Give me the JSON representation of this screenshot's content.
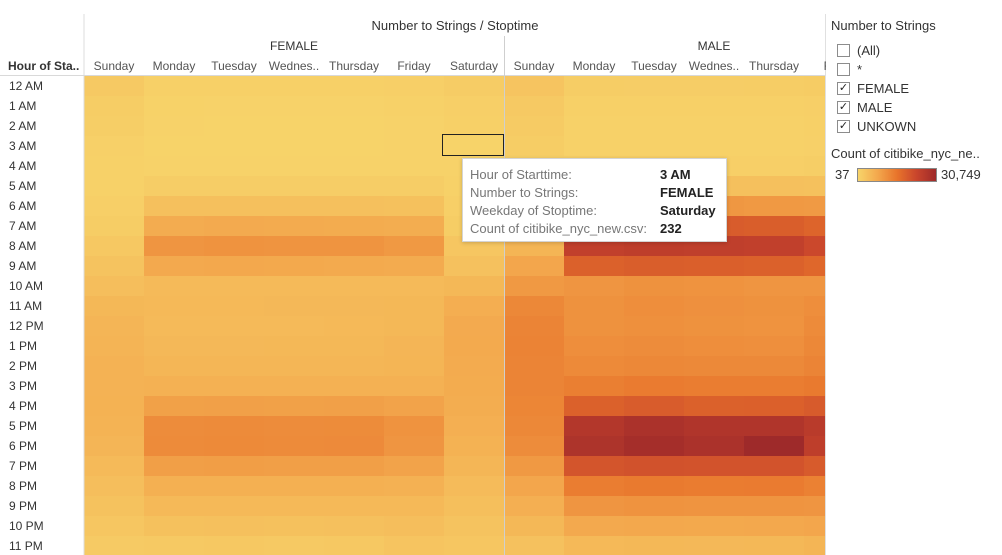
{
  "chart_data": {
    "type": "heatmap",
    "title": "Number to Strings / Stoptime",
    "row_header": "Hour of Sta..",
    "rows": [
      "12 AM",
      "1 AM",
      "2 AM",
      "3 AM",
      "4 AM",
      "5 AM",
      "6 AM",
      "7 AM",
      "8 AM",
      "9 AM",
      "10 AM",
      "11 AM",
      "12 PM",
      "1 PM",
      "2 PM",
      "3 PM",
      "4 PM",
      "5 PM",
      "6 PM",
      "7 PM",
      "8 PM",
      "9 PM",
      "10 PM",
      "11 PM"
    ],
    "groups": [
      {
        "name": "FEMALE",
        "columns": [
          "Sunday",
          "Monday",
          "Tuesday",
          "Wednes..",
          "Thursday",
          "Friday",
          "Saturday"
        ]
      },
      {
        "name": "MALE",
        "columns": [
          "Sunday",
          "Monday",
          "Tuesday",
          "Wednes..",
          "Thursday",
          "Frid"
        ]
      }
    ],
    "color_min": 37,
    "color_max": 30749,
    "values": [
      [
        1900,
        800,
        700,
        700,
        800,
        900,
        1400,
        2800,
        1300,
        1200,
        1200,
        1300,
        1500
      ],
      [
        1300,
        450,
        350,
        350,
        400,
        500,
        950,
        2000,
        800,
        700,
        700,
        800,
        950
      ],
      [
        1000,
        300,
        250,
        250,
        280,
        320,
        700,
        1600,
        600,
        550,
        550,
        600,
        700
      ],
      [
        650,
        250,
        200,
        200,
        250,
        300,
        232,
        1300,
        550,
        500,
        500,
        550,
        650
      ],
      [
        500,
        350,
        300,
        300,
        350,
        400,
        350,
        1100,
        950,
        900,
        900,
        950,
        1000
      ],
      [
        550,
        1200,
        1200,
        1200,
        1200,
        1200,
        550,
        1200,
        3500,
        3600,
        3500,
        3500,
        3400
      ],
      [
        900,
        3500,
        3600,
        3600,
        3500,
        3400,
        900,
        2000,
        10000,
        10500,
        10200,
        10000,
        9800
      ],
      [
        1300,
        7000,
        7300,
        7200,
        7100,
        6800,
        1300,
        3000,
        19000,
        19800,
        19300,
        19000,
        18000
      ],
      [
        2200,
        10500,
        10800,
        10600,
        10700,
        10000,
        2400,
        5500,
        24500,
        25000,
        24800,
        24500,
        22500
      ],
      [
        3000,
        7500,
        7700,
        7600,
        7400,
        7200,
        3300,
        8000,
        18500,
        19000,
        18800,
        18500,
        17500
      ],
      [
        3800,
        4500,
        4500,
        4600,
        4500,
        4600,
        5000,
        10000,
        10500,
        11000,
        10800,
        10500,
        10500
      ],
      [
        5000,
        4800,
        4800,
        4900,
        4900,
        5000,
        6600,
        12500,
        11000,
        11500,
        11200,
        11000,
        11500
      ],
      [
        5400,
        4600,
        4500,
        4600,
        4700,
        5000,
        7300,
        13000,
        11000,
        11300,
        11000,
        10800,
        12000
      ],
      [
        5700,
        4900,
        4900,
        5000,
        5000,
        5400,
        7400,
        13200,
        11500,
        11800,
        11500,
        11400,
        12500
      ],
      [
        5900,
        5300,
        5200,
        5300,
        5200,
        5500,
        7200,
        13000,
        12200,
        12500,
        12300,
        12300,
        13000
      ],
      [
        5900,
        6100,
        6200,
        6200,
        6100,
        6100,
        7100,
        13000,
        13800,
        14300,
        14000,
        14000,
        14500
      ],
      [
        6000,
        8800,
        8900,
        8800,
        8900,
        8400,
        6900,
        12800,
        18500,
        19300,
        18500,
        18600,
        19500
      ],
      [
        5800,
        11800,
        12000,
        11800,
        11900,
        10800,
        6500,
        12500,
        27000,
        28500,
        27500,
        27500,
        26000
      ],
      [
        5400,
        12000,
        12200,
        12000,
        12100,
        10500,
        6000,
        11800,
        28000,
        29500,
        28500,
        30749,
        25000
      ],
      [
        4600,
        9000,
        9200,
        9000,
        9100,
        8400,
        5200,
        10000,
        20500,
        21000,
        20800,
        20800,
        19500
      ],
      [
        3800,
        6300,
        6400,
        6300,
        6400,
        6200,
        4400,
        8000,
        14000,
        14500,
        14200,
        14300,
        13500
      ],
      [
        3200,
        4700,
        4800,
        4700,
        4800,
        4800,
        3700,
        6500,
        10500,
        10800,
        10600,
        10700,
        10500
      ],
      [
        2500,
        3400,
        3500,
        3400,
        3500,
        3800,
        3000,
        5000,
        7500,
        7700,
        7600,
        7700,
        8000
      ],
      [
        1700,
        2000,
        2100,
        2000,
        2200,
        2800,
        2500,
        3300,
        4800,
        5000,
        4900,
        5000,
        5500
      ]
    ],
    "highlight": {
      "row": 3,
      "col": 6
    },
    "color_scale": [
      "#f7d46a",
      "#f3a84d",
      "#e8742b",
      "#c9452c",
      "#9e2a2a"
    ]
  },
  "filter": {
    "title": "Number to Strings",
    "items": [
      {
        "label": "(All)",
        "checked": false
      },
      {
        "label": "*",
        "checked": false
      },
      {
        "label": "FEMALE",
        "checked": true
      },
      {
        "label": "MALE",
        "checked": true
      },
      {
        "label": "UNKOWN",
        "checked": true
      }
    ]
  },
  "legend": {
    "title": "Count of citibike_nyc_ne..",
    "min_label": "37",
    "max_label": "30,749"
  },
  "tooltip": {
    "rows": [
      {
        "key": "Hour of Starttime:",
        "value": "3 AM"
      },
      {
        "key": "Number to Strings:",
        "value": "FEMALE"
      },
      {
        "key": "Weekday of Stoptime:",
        "value": "Saturday"
      },
      {
        "key": "Count of citibike_nyc_new.csv:",
        "value": "232"
      }
    ]
  }
}
